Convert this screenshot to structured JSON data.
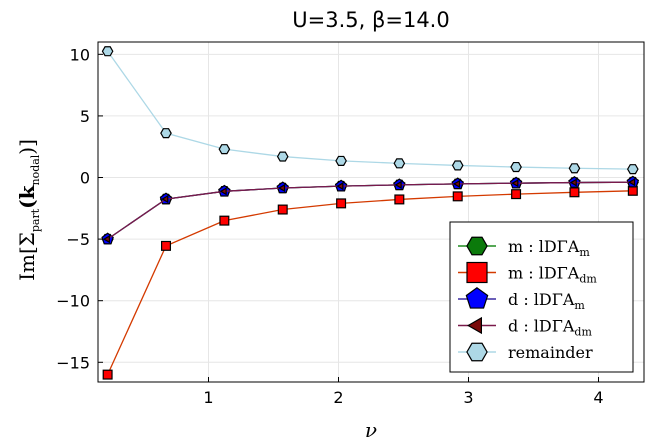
{
  "chart_data": {
    "type": "line",
    "title": "U=3.5, β=14.0",
    "xlabel": "ν",
    "ylabel": {
      "main": "Im[Σ",
      "sub1": "part",
      "mid": "(k",
      "sub2": "nodal",
      "end": ")]"
    },
    "xlim": [
      0.15,
      4.35
    ],
    "ylim": [
      -16.6,
      11.0
    ],
    "xticks": [
      1,
      2,
      3,
      4
    ],
    "yticks": [
      10,
      5,
      0,
      -5,
      -10,
      -15
    ],
    "grid": true,
    "legend_position": "bottom-right",
    "x": [
      0.224,
      0.673,
      1.122,
      1.571,
      2.02,
      2.468,
      2.917,
      3.366,
      3.815,
      4.264
    ],
    "series": [
      {
        "name": {
          "main": "m : lDΓA",
          "sub": "m"
        },
        "marker": "hexagon",
        "color": "#0b7a0b",
        "line_color": "#1e8c1e",
        "values": [
          -5.0,
          -1.75,
          -1.12,
          -0.85,
          -0.7,
          -0.6,
          -0.52,
          -0.46,
          -0.41,
          -0.38
        ]
      },
      {
        "name": {
          "main": "m : lDΓA",
          "sub": "dm"
        },
        "marker": "square",
        "color": "#ff0000",
        "line_color": "#d43a00",
        "values": [
          -16.0,
          -5.55,
          -3.5,
          -2.6,
          -2.1,
          -1.78,
          -1.53,
          -1.35,
          -1.2,
          -1.08
        ]
      },
      {
        "name": {
          "main": "d : lDΓA",
          "sub": "m"
        },
        "marker": "pentagon",
        "color": "#0000ff",
        "line_color": "#3a2aa0",
        "values": [
          -5.0,
          -1.75,
          -1.12,
          -0.85,
          -0.7,
          -0.6,
          -0.52,
          -0.46,
          -0.41,
          -0.38
        ]
      },
      {
        "name": {
          "main": "d : lDΓA",
          "sub": "dm"
        },
        "marker": "triangle-left",
        "color": "#7a0a0a",
        "line_color": "#7a1a4a",
        "values": [
          -5.0,
          -1.75,
          -1.12,
          -0.85,
          -0.7,
          -0.6,
          -0.52,
          -0.46,
          -0.41,
          -0.38
        ]
      },
      {
        "name": {
          "main": "remainder",
          "sub": ""
        },
        "marker": "hexagon",
        "color": "#add8e6",
        "line_color": "#add8e6",
        "values": [
          10.25,
          3.6,
          2.3,
          1.7,
          1.35,
          1.15,
          0.98,
          0.85,
          0.75,
          0.68
        ]
      }
    ]
  }
}
